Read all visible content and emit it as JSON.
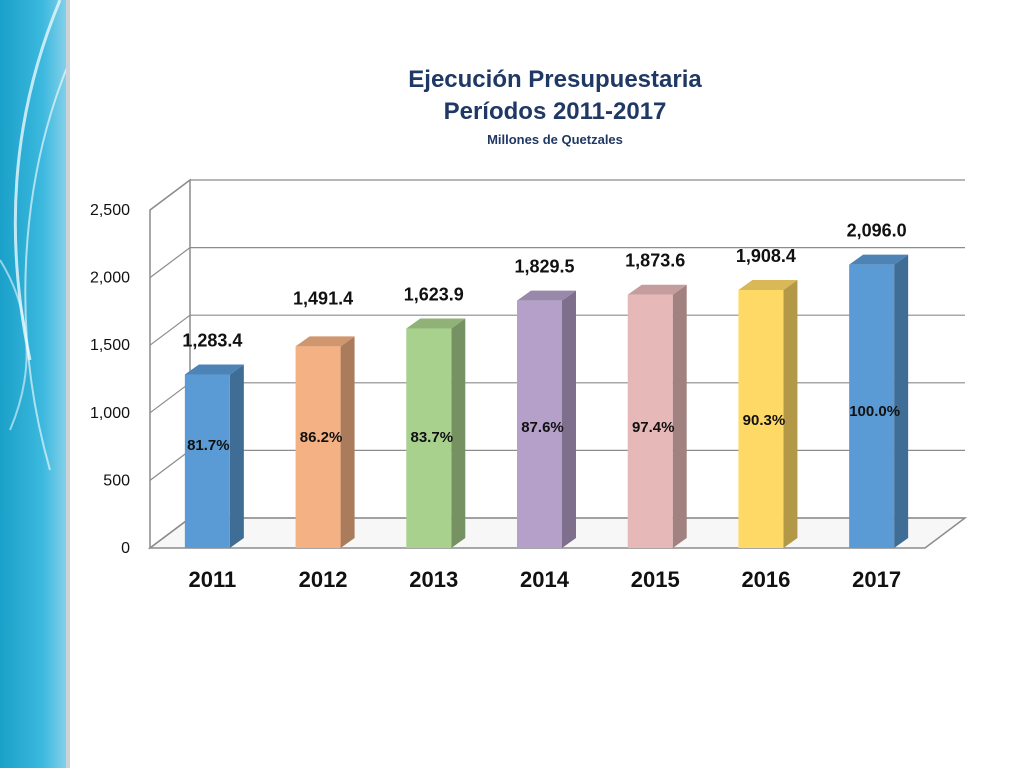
{
  "title": {
    "line1": "Ejecución Presupuestaria",
    "line2": "Períodos 2011-2017",
    "subtitle": "Millones de Quetzales"
  },
  "chart_data": {
    "type": "bar",
    "categories": [
      "2011",
      "2012",
      "2013",
      "2014",
      "2015",
      "2016",
      "2017"
    ],
    "values": [
      1283.4,
      1491.4,
      1623.9,
      1829.5,
      1873.6,
      1908.4,
      2096.0
    ],
    "value_labels": [
      "1,283.4",
      "1,491.4",
      "1,623.9",
      "1,829.5",
      "1,873.6",
      "1,908.4",
      "2,096.0"
    ],
    "percent_labels": [
      "81.7%",
      "86.2%",
      "83.7%",
      "87.6%",
      "97.4%",
      "90.3%",
      "100.0%"
    ],
    "colors": [
      "#5b9bd5",
      "#f4b183",
      "#a9d18e",
      "#b4a0c8",
      "#e6b9b8",
      "#ffd966",
      "#5b9bd5"
    ],
    "ylim": [
      0,
      2500
    ],
    "yticks": [
      0,
      500,
      1000,
      1500,
      2000,
      2500
    ],
    "ytick_labels": [
      "0",
      "500",
      "1,000",
      "1,500",
      "2,000",
      "2,500"
    ],
    "grid": true,
    "style": "3d-column"
  }
}
